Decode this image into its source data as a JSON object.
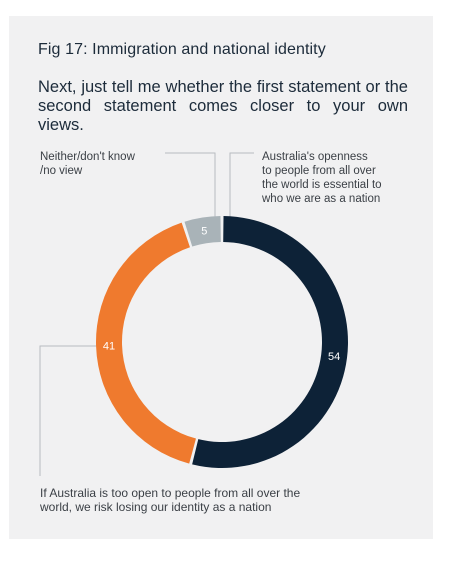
{
  "chart_data": {
    "type": "pie",
    "title": "Fig 17: Immigration and national identity",
    "subtitle": "Next, just tell me whether the first statement or the second statement comes closer to your own views.",
    "slices": [
      {
        "label": "Australia's openness to people from all over the world is essential to who we are as a nation",
        "value": 54,
        "color": "#0d2237"
      },
      {
        "label": "If Australia is too open to people from all over the world, we risk losing our identity as a nation",
        "value": 41,
        "color": "#ef7a2e"
      },
      {
        "label": "Neither/don't know /no view",
        "value": 5,
        "color": "#a9b3b8"
      }
    ],
    "labels_display": {
      "slice0": [
        "Australia's openness",
        "to people from all over",
        "the world is essential to",
        "who we are as a nation"
      ],
      "slice1": [
        "If Australia is too open to people from all over the",
        "world, we risk losing our identity as a nation"
      ],
      "slice2": [
        "Neither/don't know",
        "/no view"
      ]
    }
  }
}
